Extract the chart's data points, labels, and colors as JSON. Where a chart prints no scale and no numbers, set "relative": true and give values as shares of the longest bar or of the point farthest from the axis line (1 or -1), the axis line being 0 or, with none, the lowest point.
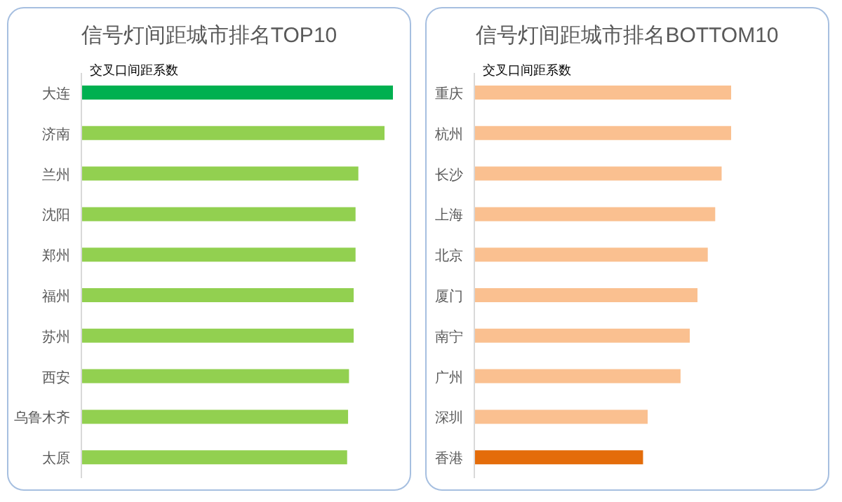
{
  "chart_data": [
    {
      "type": "bar",
      "orientation": "horizontal",
      "relative": true,
      "title": "信号灯间距城市排名TOP10",
      "subtitle": "交叉口间距系数",
      "categories": [
        "大连",
        "济南",
        "兰州",
        "沈阳",
        "郑州",
        "福州",
        "苏州",
        "西安",
        "乌鲁木齐",
        "太原"
      ],
      "values": [
        1,
        0.973,
        0.889,
        0.88,
        0.88,
        0.874,
        0.874,
        0.859,
        0.856,
        0.853
      ],
      "colors": [
        "#00b050",
        "#92d050",
        "#92d050",
        "#92d050",
        "#92d050",
        "#92d050",
        "#92d050",
        "#92d050",
        "#92d050",
        "#92d050"
      ]
    },
    {
      "type": "bar",
      "orientation": "horizontal",
      "relative": true,
      "title": "信号灯间距城市排名BOTTOM10",
      "subtitle": "交叉口间距系数",
      "categories": [
        "重庆",
        "杭州",
        "长沙",
        "上海",
        "北京",
        "厦门",
        "南宁",
        "广州",
        "深圳",
        "香港"
      ],
      "values": [
        1,
        1,
        0.963,
        0.938,
        0.909,
        0.869,
        0.839,
        0.803,
        0.675,
        0.657
      ],
      "colors": [
        "#fac090",
        "#fac090",
        "#fac090",
        "#fac090",
        "#fac090",
        "#fac090",
        "#fac090",
        "#fac090",
        "#fac090",
        "#e46c0a"
      ]
    }
  ]
}
